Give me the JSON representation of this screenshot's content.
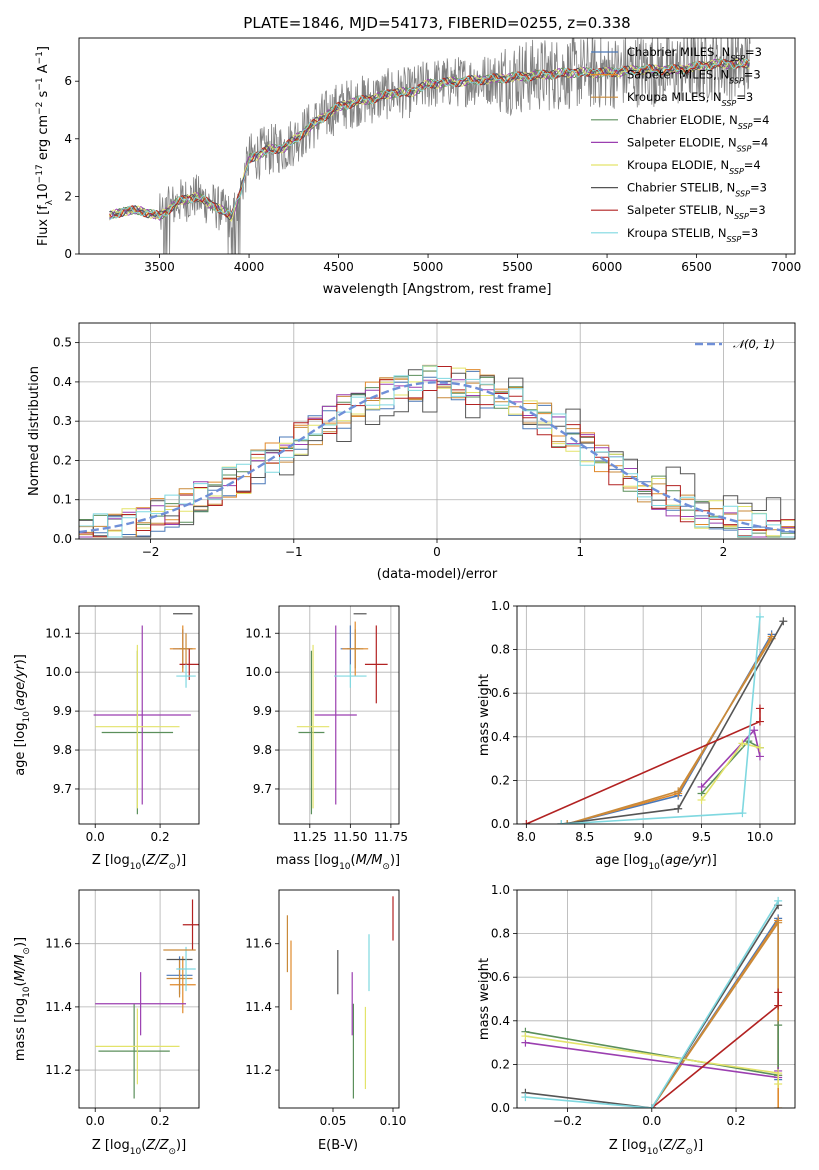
{
  "colors": {
    "Chabrier MILES": "#4a78b8",
    "Salpeter MILES": "#e08a2c",
    "Kroupa MILES": "#c98a3a",
    "Chabrier ELODIE": "#5b8f5b",
    "Salpeter ELODIE": "#9b3fb0",
    "Kroupa ELODIE": "#e3e36a",
    "Chabrier STELIB": "#555555",
    "Salpeter STELIB": "#b22222",
    "Kroupa STELIB": "#7fd8e0",
    "data": "#808080",
    "normal": "#6f8fd8"
  },
  "chart_data": [
    {
      "id": "spectrum",
      "type": "line",
      "title": "PLATE=1846, MJD=54173, FIBERID=0255, z=0.338",
      "xlabel": "wavelength [Angstrom, rest frame]",
      "ylabel": "Flux [f_λ 10^-17 erg cm^-2 s^-1 A^-1]",
      "xlim": [
        3050,
        7050
      ],
      "ylim": [
        0,
        7.5
      ],
      "xticks": [
        3500,
        4000,
        4500,
        5000,
        5500,
        6000,
        6500,
        7000
      ],
      "yticks": [
        0,
        2,
        4,
        6
      ],
      "grid": false,
      "legend_position": "top-right",
      "legend": [
        {
          "name": "Chabrier MILES",
          "nssp": "3"
        },
        {
          "name": "Salpeter MILES",
          "nssp": "3"
        },
        {
          "name": "Kroupa MILES",
          "nssp": "3"
        },
        {
          "name": "Chabrier ELODIE",
          "nssp": "4"
        },
        {
          "name": "Salpeter ELODIE",
          "nssp": "4"
        },
        {
          "name": "Kroupa ELODIE",
          "nssp": "4"
        },
        {
          "name": "Chabrier STELIB",
          "nssp": "3"
        },
        {
          "name": "Salpeter STELIB",
          "nssp": "3"
        },
        {
          "name": "Kroupa STELIB",
          "nssp": "3"
        }
      ],
      "model_curve": {
        "x": [
          3220,
          3300,
          3400,
          3500,
          3600,
          3700,
          3800,
          3900,
          3950,
          4000,
          4100,
          4200,
          4300,
          4400,
          4500,
          4600,
          4700,
          4800,
          4900,
          5000,
          5200,
          5400,
          5600,
          5800,
          6000,
          6200,
          6400,
          6600,
          6800
        ],
        "y": [
          1.3,
          1.5,
          1.5,
          1.3,
          1.8,
          2.0,
          1.7,
          1.3,
          2.1,
          3.3,
          3.6,
          3.7,
          4.2,
          4.7,
          5.1,
          5.3,
          5.4,
          5.6,
          5.6,
          5.9,
          6.0,
          6.1,
          6.2,
          6.3,
          6.3,
          6.4,
          6.4,
          6.6,
          6.6
        ]
      }
    },
    {
      "id": "residuals",
      "type": "line",
      "xlabel": "(data-model)/error",
      "ylabel": "Normed distribution",
      "xlim": [
        -2.5,
        2.5
      ],
      "ylim": [
        0,
        0.55
      ],
      "xticks": [
        -2,
        -1,
        0,
        1,
        2
      ],
      "yticks": [
        0.0,
        0.1,
        0.2,
        0.3,
        0.4,
        0.5
      ],
      "grid": true,
      "legend_position": "top-right",
      "legend": [
        "𝒩(0, 1)"
      ],
      "normal_curve": {
        "mean": 0,
        "sigma": 1
      }
    },
    {
      "id": "age-vs-Z",
      "type": "scatter",
      "xlabel": "Z [log10(Z/Z⊙)]",
      "ylabel": "age  [log10(age/yr)]",
      "xlim": [
        -0.05,
        0.32
      ],
      "ylim": [
        9.61,
        10.17
      ],
      "xticks": [
        0.0,
        0.2
      ],
      "yticks": [
        9.7,
        9.8,
        9.9,
        10.0,
        10.1
      ],
      "grid": true,
      "points": [
        {
          "model": "Chabrier MILES",
          "x": 0.27,
          "xerr": 0.03,
          "y": 10.06,
          "yerr": 0.05
        },
        {
          "model": "Salpeter MILES",
          "x": 0.27,
          "xerr": 0.04,
          "y": 10.06,
          "yerr": 0.06
        },
        {
          "model": "Kroupa MILES",
          "x": 0.28,
          "xerr": 0.02,
          "y": 10.06,
          "yerr": 0.04
        },
        {
          "model": "Chabrier ELODIE",
          "x": 0.13,
          "xerr": 0.11,
          "y": 9.845,
          "yerr": 0.21
        },
        {
          "model": "Salpeter ELODIE",
          "x": 0.145,
          "xerr": 0.15,
          "y": 9.89,
          "yerr": 0.23
        },
        {
          "model": "Kroupa ELODIE",
          "x": 0.13,
          "xerr": 0.13,
          "y": 9.86,
          "yerr": 0.21
        },
        {
          "model": "Chabrier STELIB",
          "x": 0.27,
          "xerr": 0.03,
          "y": 10.15,
          "yerr": 0.0
        },
        {
          "model": "Salpeter STELIB",
          "x": 0.29,
          "xerr": 0.03,
          "y": 10.02,
          "yerr": 0.04
        },
        {
          "model": "Kroupa STELIB",
          "x": 0.28,
          "xerr": 0.03,
          "y": 9.99,
          "yerr": 0.03
        }
      ]
    },
    {
      "id": "age-vs-mass",
      "type": "scatter",
      "xlabel": "mass [log10(M/M⊙)]",
      "xlim": [
        11.06,
        11.8
      ],
      "ylim": [
        9.61,
        10.17
      ],
      "xticks": [
        11.25,
        11.5,
        11.75
      ],
      "yticks": [
        9.7,
        9.8,
        9.9,
        10.0,
        10.1
      ],
      "grid": true,
      "points": [
        {
          "model": "Chabrier MILES",
          "x": 11.5,
          "xerr": 0.06,
          "y": 10.06,
          "yerr": 0.06
        },
        {
          "model": "Salpeter MILES",
          "x": 11.53,
          "xerr": 0.08,
          "y": 10.06,
          "yerr": 0.07
        },
        {
          "model": "Kroupa MILES",
          "x": 11.53,
          "xerr": 0.05,
          "y": 10.06,
          "yerr": 0.05
        },
        {
          "model": "Chabrier ELODIE",
          "x": 11.26,
          "xerr": 0.08,
          "y": 9.845,
          "yerr": 0.21
        },
        {
          "model": "Salpeter ELODIE",
          "x": 11.41,
          "xerr": 0.13,
          "y": 9.89,
          "yerr": 0.23
        },
        {
          "model": "Kroupa ELODIE",
          "x": 11.27,
          "xerr": 0.1,
          "y": 9.86,
          "yerr": 0.21
        },
        {
          "model": "Chabrier STELIB",
          "x": 11.56,
          "xerr": 0.04,
          "y": 10.15,
          "yerr": 0.0
        },
        {
          "model": "Salpeter STELIB",
          "x": 11.66,
          "xerr": 0.07,
          "y": 10.02,
          "yerr": 0.1
        },
        {
          "model": "Kroupa STELIB",
          "x": 11.5,
          "xerr": 0.1,
          "y": 9.99,
          "yerr": 0.03
        }
      ]
    },
    {
      "id": "weight-vs-age",
      "type": "line",
      "xlabel": "age  [log10(age/yr)]",
      "ylabel": "mass weight",
      "xlim": [
        7.92,
        10.3
      ],
      "ylim": [
        0,
        1.0
      ],
      "xticks": [
        8.0,
        8.5,
        9.0,
        9.5,
        10.0
      ],
      "yticks": [
        0.0,
        0.2,
        0.4,
        0.6,
        0.8,
        1.0
      ],
      "grid": true,
      "series": [
        {
          "model": "Chabrier MILES",
          "x": [
            8.35,
            9.3,
            10.1
          ],
          "y": [
            0.0,
            0.13,
            0.87
          ]
        },
        {
          "model": "Salpeter MILES",
          "x": [
            8.35,
            9.3,
            10.1
          ],
          "y": [
            0.0,
            0.14,
            0.86
          ]
        },
        {
          "model": "Kroupa MILES",
          "x": [
            8.35,
            9.3,
            10.1
          ],
          "y": [
            0.0,
            0.15,
            0.85
          ]
        },
        {
          "model": "Chabrier ELODIE",
          "x": [
            9.5,
            9.9,
            10.0
          ],
          "y": [
            0.14,
            0.38,
            0.35
          ]
        },
        {
          "model": "Salpeter ELODIE",
          "x": [
            9.5,
            9.95,
            10.0
          ],
          "y": [
            0.17,
            0.43,
            0.31
          ]
        },
        {
          "model": "Kroupa ELODIE",
          "x": [
            9.5,
            9.85,
            10.0
          ],
          "y": [
            0.11,
            0.37,
            0.35
          ]
        },
        {
          "model": "Chabrier STELIB",
          "x": [
            8.3,
            9.3,
            10.2
          ],
          "y": [
            0.0,
            0.07,
            0.93
          ]
        },
        {
          "model": "Salpeter STELIB",
          "x": [
            8.0,
            10.0,
            10.0
          ],
          "y": [
            0.0,
            0.47,
            0.53
          ]
        },
        {
          "model": "Kroupa STELIB",
          "x": [
            8.3,
            9.85,
            10.0
          ],
          "y": [
            0.0,
            0.05,
            0.95
          ]
        }
      ]
    },
    {
      "id": "mass-vs-Z",
      "type": "scatter",
      "xlabel": "Z [log10(Z/Z⊙)]",
      "ylabel": "mass [log10(M/M⊙)]",
      "xlim": [
        -0.05,
        0.32
      ],
      "ylim": [
        11.08,
        11.77
      ],
      "xticks": [
        0.0,
        0.2
      ],
      "yticks": [
        11.2,
        11.4,
        11.6
      ],
      "grid": true,
      "points": [
        {
          "model": "Chabrier MILES",
          "x": 0.26,
          "xerr": 0.04,
          "y": 11.5,
          "yerr": 0.06
        },
        {
          "model": "Salpeter MILES",
          "x": 0.27,
          "xerr": 0.04,
          "y": 11.47,
          "yerr": 0.09
        },
        {
          "model": "Kroupa MILES",
          "x": 0.26,
          "xerr": 0.04,
          "y": 11.49,
          "yerr": 0.06
        },
        {
          "model": "Chabrier ELODIE",
          "x": 0.12,
          "xerr": 0.11,
          "y": 11.26,
          "yerr": 0.15
        },
        {
          "model": "Salpeter ELODIE",
          "x": 0.14,
          "xerr": 0.14,
          "y": 11.41,
          "yerr": 0.1
        },
        {
          "model": "Kroupa ELODIE",
          "x": 0.13,
          "xerr": 0.13,
          "y": 11.275,
          "yerr": 0.12
        },
        {
          "model": "Chabrier STELIB",
          "x": 0.26,
          "xerr": 0.04,
          "y": 11.55,
          "yerr": 0.0
        },
        {
          "model": "Salpeter STELIB",
          "x": 0.3,
          "xerr": 0.03,
          "y": 11.66,
          "yerr": 0.08
        },
        {
          "model": "Kroupa STELIB",
          "x": 0.28,
          "xerr": 0.03,
          "y": 11.52,
          "yerr": 0.07
        },
        {
          "model": "Kroupa MILES",
          "x": 0.26,
          "xerr": 0.05,
          "y": 11.58,
          "yerr": 0.0
        }
      ]
    },
    {
      "id": "mass-vs-EBV",
      "type": "scatter",
      "xlabel": "E(B-V)",
      "xlim": [
        0.005,
        0.105
      ],
      "ylim": [
        11.08,
        11.77
      ],
      "xticks": [
        0.05,
        0.1
      ],
      "yticks": [
        11.2,
        11.4,
        11.6
      ],
      "grid": false,
      "points": [
        {
          "model": "Salpeter MILES",
          "x": 0.015,
          "y": 11.5,
          "yerr": 0.11
        },
        {
          "model": "Kroupa MILES",
          "x": 0.012,
          "y": 11.6,
          "yerr": 0.09
        },
        {
          "model": "Chabrier ELODIE",
          "x": 0.067,
          "y": 11.26,
          "yerr": 0.15
        },
        {
          "model": "Salpeter ELODIE",
          "x": 0.066,
          "y": 11.41,
          "yerr": 0.1
        },
        {
          "model": "Kroupa ELODIE",
          "x": 0.077,
          "y": 11.27,
          "yerr": 0.13
        },
        {
          "model": "Chabrier STELIB",
          "x": 0.054,
          "y": 11.51,
          "yerr": 0.07
        },
        {
          "model": "Salpeter STELIB",
          "x": 0.1,
          "y": 11.68,
          "yerr": 0.07
        },
        {
          "model": "Kroupa STELIB",
          "x": 0.08,
          "y": 11.54,
          "yerr": 0.09
        }
      ]
    },
    {
      "id": "weight-vs-Z",
      "type": "line",
      "xlabel": "Z [log10(Z/Z⊙)]",
      "ylabel": "mass weight",
      "xlim": [
        -0.32,
        0.34
      ],
      "ylim": [
        0,
        1.0
      ],
      "xticks": [
        -0.2,
        0.0,
        0.2
      ],
      "yticks": [
        0.0,
        0.2,
        0.4,
        0.6,
        0.8,
        1.0
      ],
      "grid": true,
      "series": [
        {
          "model": "Chabrier MILES",
          "x": [
            0.0,
            0.3,
            0.3
          ],
          "y": [
            0.0,
            0.87,
            0.13
          ]
        },
        {
          "model": "Salpeter MILES",
          "x": [
            0.0,
            0.3,
            0.3
          ],
          "y": [
            0.0,
            0.86,
            0.0
          ]
        },
        {
          "model": "Kroupa MILES",
          "x": [
            0.0,
            0.3,
            0.3
          ],
          "y": [
            0.0,
            0.85,
            0.15
          ]
        },
        {
          "model": "Chabrier ELODIE",
          "x": [
            -0.3,
            0.3,
            0.3
          ],
          "y": [
            0.35,
            0.15,
            0.38
          ]
        },
        {
          "model": "Salpeter ELODIE",
          "x": [
            -0.3,
            0.3,
            0.3
          ],
          "y": [
            0.3,
            0.14,
            0.17
          ]
        },
        {
          "model": "Kroupa ELODIE",
          "x": [
            -0.3,
            0.3,
            0.3
          ],
          "y": [
            0.33,
            0.16,
            0.11
          ]
        },
        {
          "model": "Chabrier STELIB",
          "x": [
            -0.3,
            0.0,
            0.3
          ],
          "y": [
            0.07,
            0.0,
            0.93
          ]
        },
        {
          "model": "Salpeter STELIB",
          "x": [
            0.0,
            0.3,
            0.3
          ],
          "y": [
            0.0,
            0.47,
            0.53
          ]
        },
        {
          "model": "Kroupa STELIB",
          "x": [
            -0.3,
            0.0,
            0.3
          ],
          "y": [
            0.05,
            0.0,
            0.95
          ]
        }
      ]
    }
  ]
}
